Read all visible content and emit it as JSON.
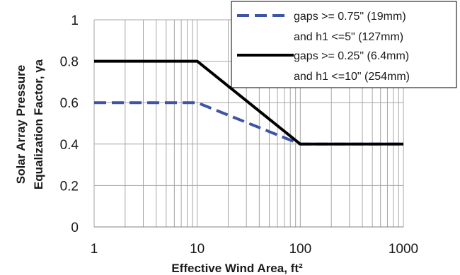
{
  "chart_data": {
    "type": "line",
    "xlabel": "Effective Wind Area, ft²",
    "ylabel_line1": "Solar Array Pressure",
    "ylabel_line2": "Equalization Factor, γa",
    "xscale": "log",
    "xlim": [
      1,
      1000
    ],
    "ylim": [
      0,
      1
    ],
    "xticks": [
      1,
      10,
      100,
      1000
    ],
    "xtick_labels": [
      "1",
      "10",
      "100",
      "1000"
    ],
    "yticks": [
      0,
      0.2,
      0.4,
      0.6,
      0.8,
      1
    ],
    "ytick_labels": [
      "0",
      "0.2",
      "0.4",
      "0.6",
      "0.8",
      "1"
    ],
    "grid": true,
    "legend_position": "top-right",
    "series": [
      {
        "name_line1": "gaps >= 0.75\" (19mm)",
        "name_line2": "and h1 <=5\" (127mm)",
        "style": "dashed",
        "color": "#3d55a5",
        "x": [
          1,
          10,
          100,
          1000
        ],
        "y": [
          0.6,
          0.6,
          0.4,
          0.4
        ]
      },
      {
        "name_line1": "gaps >= 0.25\" (6.4mm)",
        "name_line2": "and h1 <=10\" (254mm)",
        "style": "solid",
        "color": "#000000",
        "x": [
          1,
          10,
          100,
          1000
        ],
        "y": [
          0.8,
          0.8,
          0.4,
          0.4
        ]
      }
    ]
  }
}
